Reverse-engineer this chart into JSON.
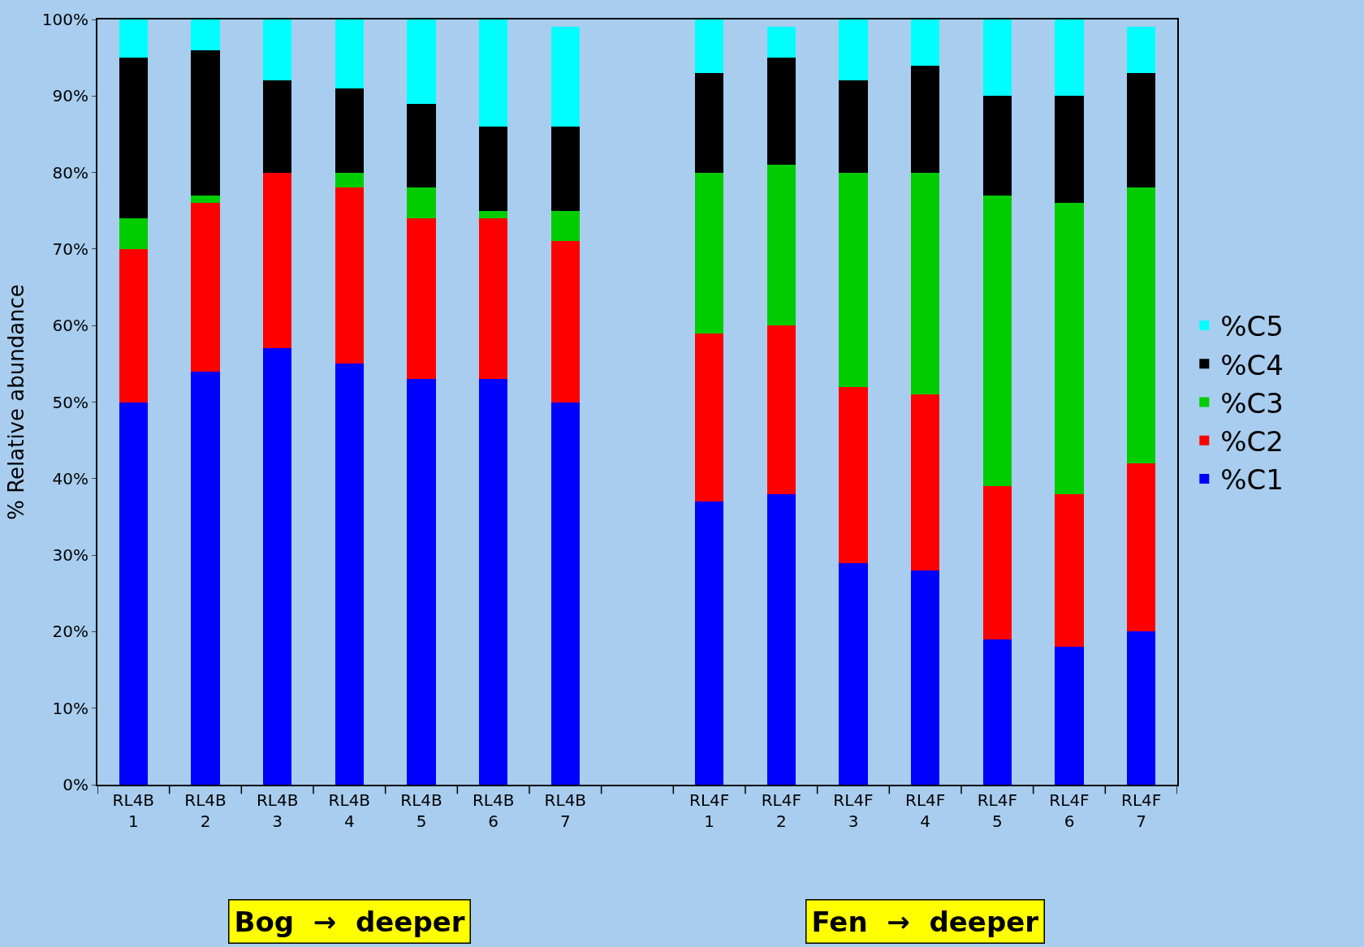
{
  "chart_data": {
    "type": "bar",
    "stacked": true,
    "ylabel": "% Relative abundance",
    "categories": [
      "RL4B\n1",
      "RL4B\n2",
      "RL4B\n3",
      "RL4B\n4",
      "RL4B\n5",
      "RL4B\n6",
      "RL4B\n7",
      null,
      "RL4F\n1",
      "RL4F\n2",
      "RL4F\n3",
      "RL4F\n4",
      "RL4F\n5",
      "RL4F\n6",
      "RL4F\n7"
    ],
    "series": [
      {
        "name": "%C1",
        "color": "#0000ff",
        "values": [
          50,
          54,
          57,
          55,
          53,
          53,
          50,
          null,
          37,
          38,
          29,
          28,
          19,
          18,
          20
        ]
      },
      {
        "name": "%C2",
        "color": "#ff0000",
        "values": [
          20,
          22,
          23,
          23,
          21,
          21,
          21,
          null,
          22,
          22,
          23,
          23,
          20,
          20,
          22
        ]
      },
      {
        "name": "%C3",
        "color": "#00cc00",
        "values": [
          4,
          1,
          0,
          2,
          4,
          1,
          4,
          null,
          21,
          21,
          28,
          29,
          38,
          38,
          36
        ]
      },
      {
        "name": "%C4",
        "color": "#000000",
        "values": [
          21,
          19,
          12,
          11,
          11,
          11,
          11,
          null,
          13,
          14,
          12,
          14,
          13,
          14,
          15
        ]
      },
      {
        "name": "%C5",
        "color": "#00ffff",
        "values": [
          5,
          4,
          8,
          9,
          11,
          14,
          13,
          null,
          7,
          4,
          8,
          6,
          10,
          10,
          6
        ]
      }
    ],
    "ylim": [
      0,
      100
    ],
    "yticks": [
      {
        "value": 0,
        "label": "0%"
      },
      {
        "value": 10,
        "label": "10%"
      },
      {
        "value": 20,
        "label": "20%"
      },
      {
        "value": 30,
        "label": "30%"
      },
      {
        "value": 40,
        "label": "40%"
      },
      {
        "value": 50,
        "label": "50%"
      },
      {
        "value": 60,
        "label": "60%"
      },
      {
        "value": 70,
        "label": "70%"
      },
      {
        "value": 80,
        "label": "80%"
      },
      {
        "value": 90,
        "label": "90%"
      },
      {
        "value": 100,
        "label": "100%"
      }
    ],
    "grid": false,
    "legend": "right",
    "annotations": [
      "Bog  →  deeper",
      "Fen  →  deeper"
    ]
  }
}
